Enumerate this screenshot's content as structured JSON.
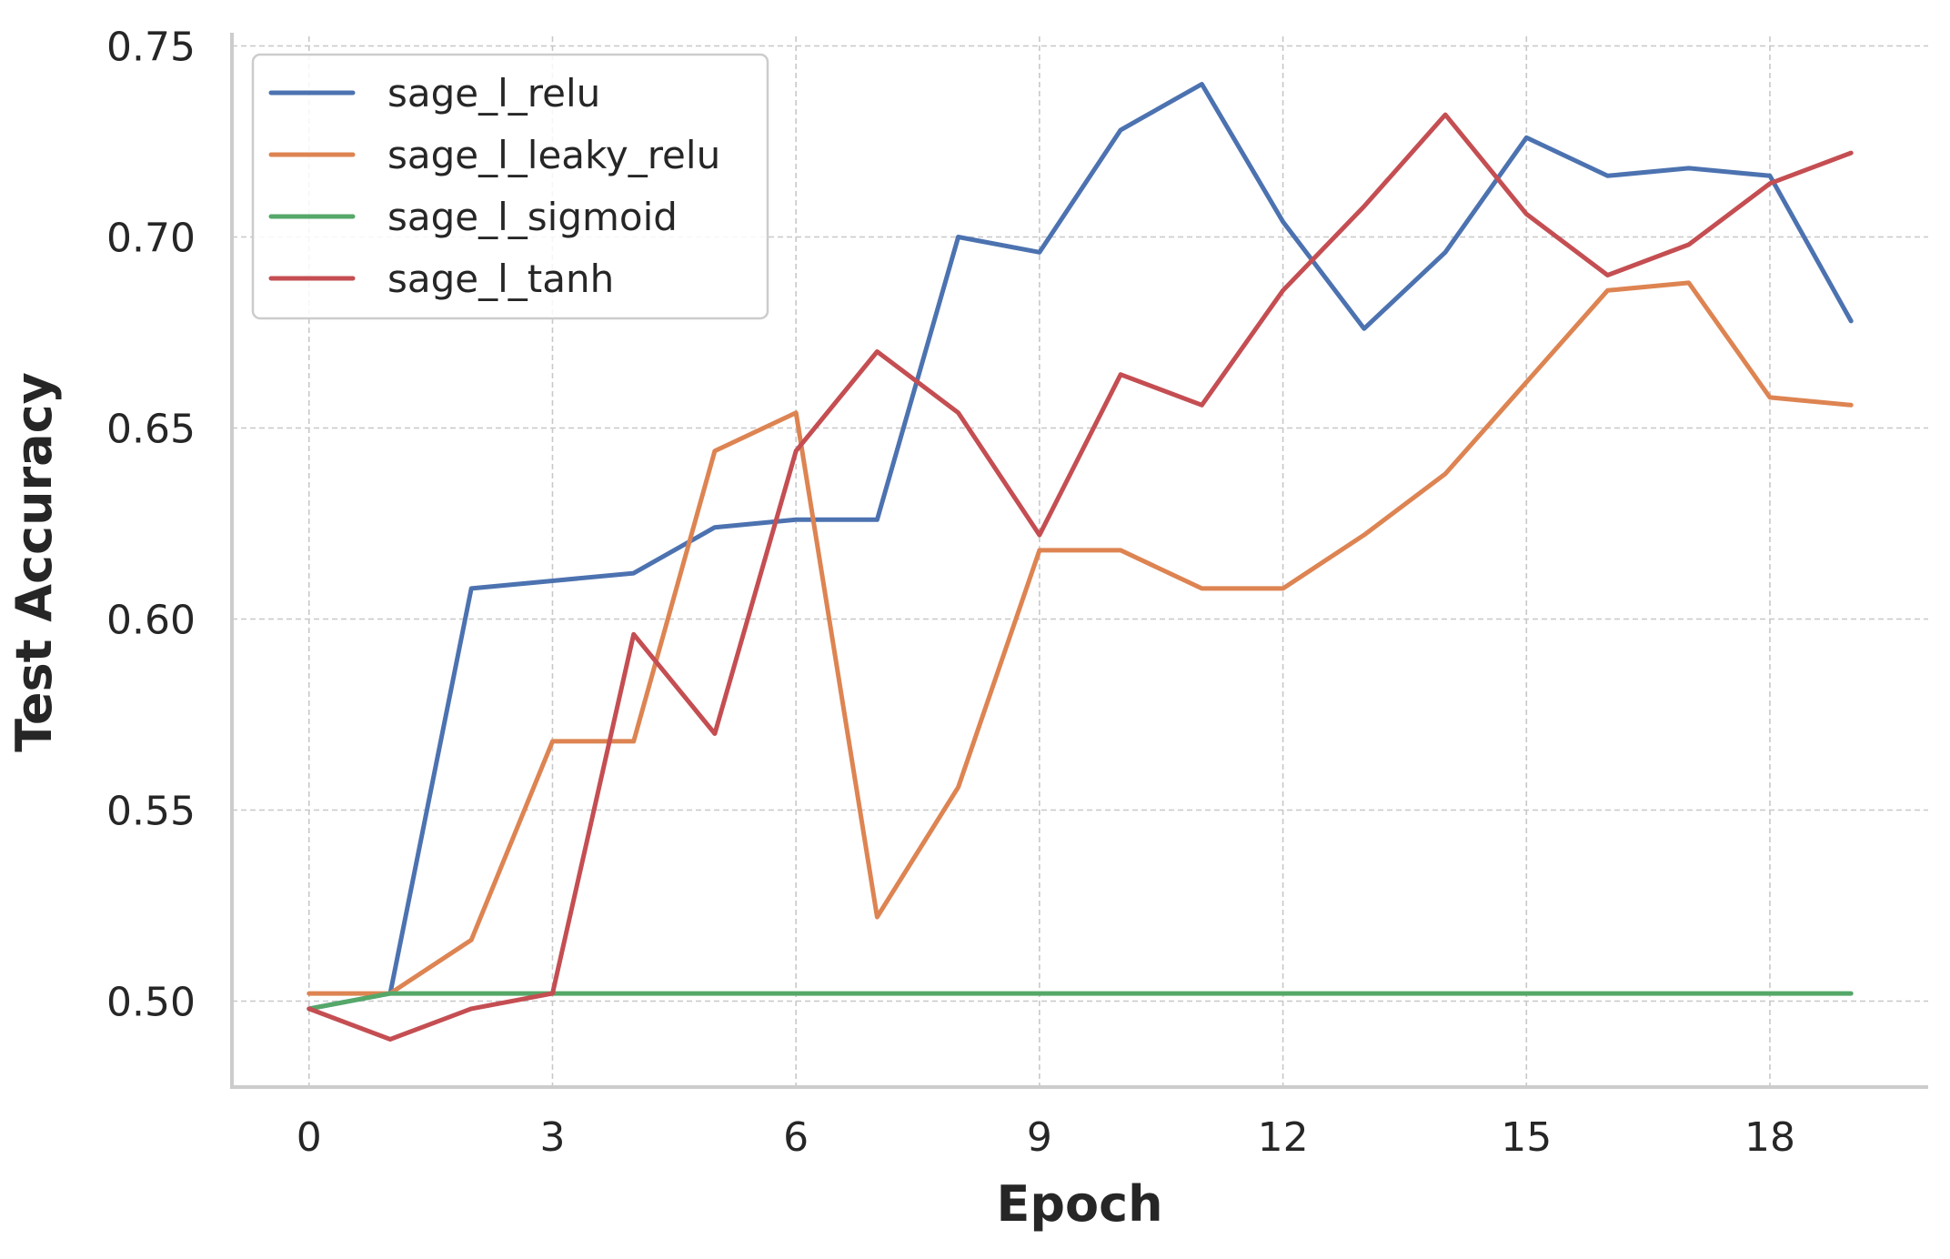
{
  "chart_data": {
    "type": "line",
    "title": "",
    "xlabel": "Epoch",
    "ylabel": "Test Accuracy",
    "x": [
      0,
      1,
      2,
      3,
      4,
      5,
      6,
      7,
      8,
      9,
      10,
      11,
      12,
      13,
      14,
      15,
      16,
      17,
      18,
      19
    ],
    "xticks": [
      0,
      3,
      6,
      9,
      12,
      15,
      18
    ],
    "yticks": [
      0.5,
      0.55,
      0.6,
      0.65,
      0.7,
      0.75
    ],
    "xlim": [
      -0.95,
      19.95
    ],
    "ylim": [
      0.4775,
      0.7525
    ],
    "grid": true,
    "legend_position": "top-left",
    "series": [
      {
        "name": "sage_l_relu",
        "color": "#4c72b0",
        "values": [
          0.498,
          0.502,
          0.608,
          0.61,
          0.612,
          0.624,
          0.626,
          0.626,
          0.7,
          0.696,
          0.728,
          0.74,
          0.704,
          0.676,
          0.696,
          0.726,
          0.716,
          0.718,
          0.716,
          0.678
        ]
      },
      {
        "name": "sage_l_leaky_relu",
        "color": "#dd8452",
        "values": [
          0.502,
          0.502,
          0.516,
          0.568,
          0.568,
          0.644,
          0.654,
          0.522,
          0.556,
          0.618,
          0.618,
          0.608,
          0.608,
          0.622,
          0.638,
          0.662,
          0.686,
          0.688,
          0.658,
          0.656
        ]
      },
      {
        "name": "sage_l_sigmoid",
        "color": "#55a868",
        "values": [
          0.498,
          0.502,
          0.502,
          0.502,
          0.502,
          0.502,
          0.502,
          0.502,
          0.502,
          0.502,
          0.502,
          0.502,
          0.502,
          0.502,
          0.502,
          0.502,
          0.502,
          0.502,
          0.502,
          0.502
        ]
      },
      {
        "name": "sage_l_tanh",
        "color": "#c44e52",
        "values": [
          0.498,
          0.49,
          0.498,
          0.502,
          0.596,
          0.57,
          0.644,
          0.67,
          0.654,
          0.622,
          0.664,
          0.656,
          0.686,
          0.708,
          0.732,
          0.706,
          0.69,
          0.698,
          0.714,
          0.722
        ]
      }
    ]
  }
}
